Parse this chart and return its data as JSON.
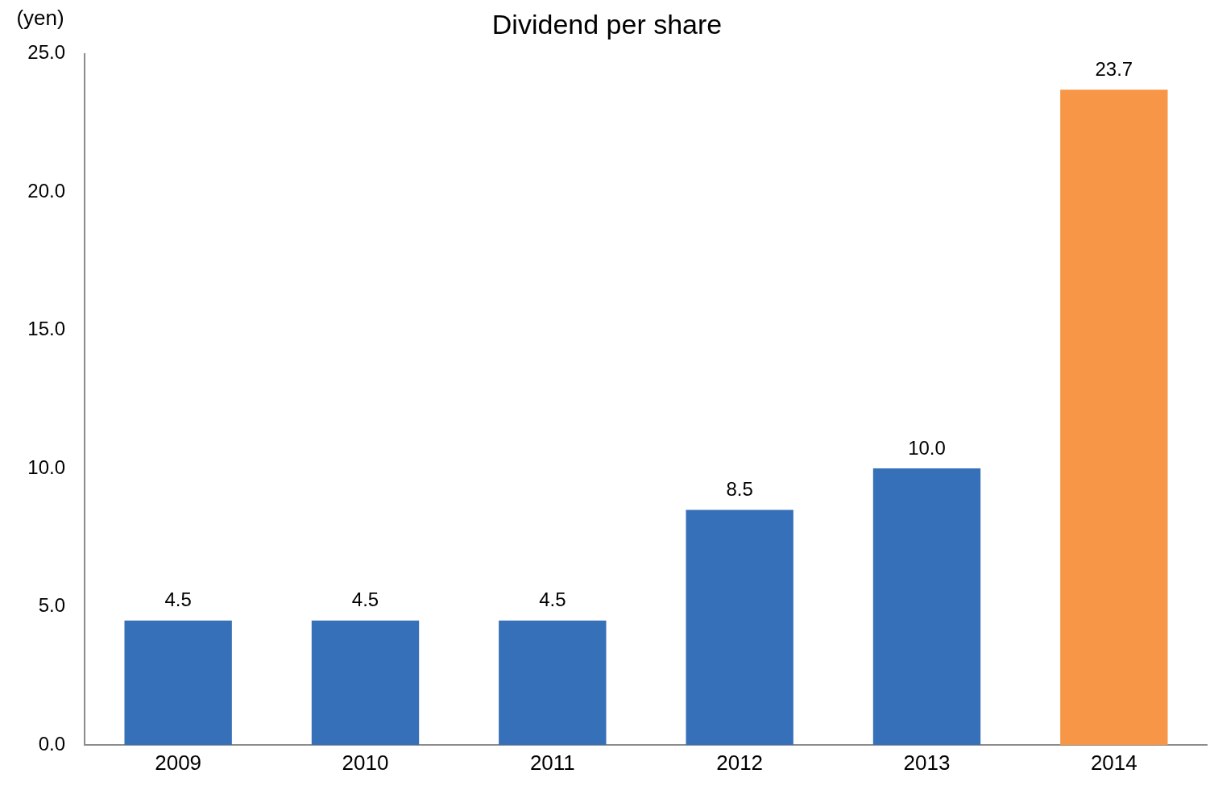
{
  "chart_data": {
    "type": "bar",
    "title": "Dividend per share",
    "ylabel": "(yen)",
    "categories": [
      "2009",
      "2010",
      "2011",
      "2012",
      "2013",
      "2014"
    ],
    "values": [
      4.5,
      4.5,
      4.5,
      8.5,
      10.0,
      23.7
    ],
    "colors": [
      "#3670b8",
      "#3670b8",
      "#3670b8",
      "#3670b8",
      "#3670b8",
      "#f79646"
    ],
    "value_labels": [
      "4.5",
      "4.5",
      "4.5",
      "8.5",
      "10.0",
      "23.7"
    ],
    "ylim": [
      0,
      25
    ],
    "yticks": [
      {
        "value": 0,
        "label": "0.0"
      },
      {
        "value": 5,
        "label": "5.0"
      },
      {
        "value": 10,
        "label": "10.0"
      },
      {
        "value": 15,
        "label": "15.0"
      },
      {
        "value": 20,
        "label": "20.0"
      },
      {
        "value": 25,
        "label": "25.0"
      }
    ]
  }
}
